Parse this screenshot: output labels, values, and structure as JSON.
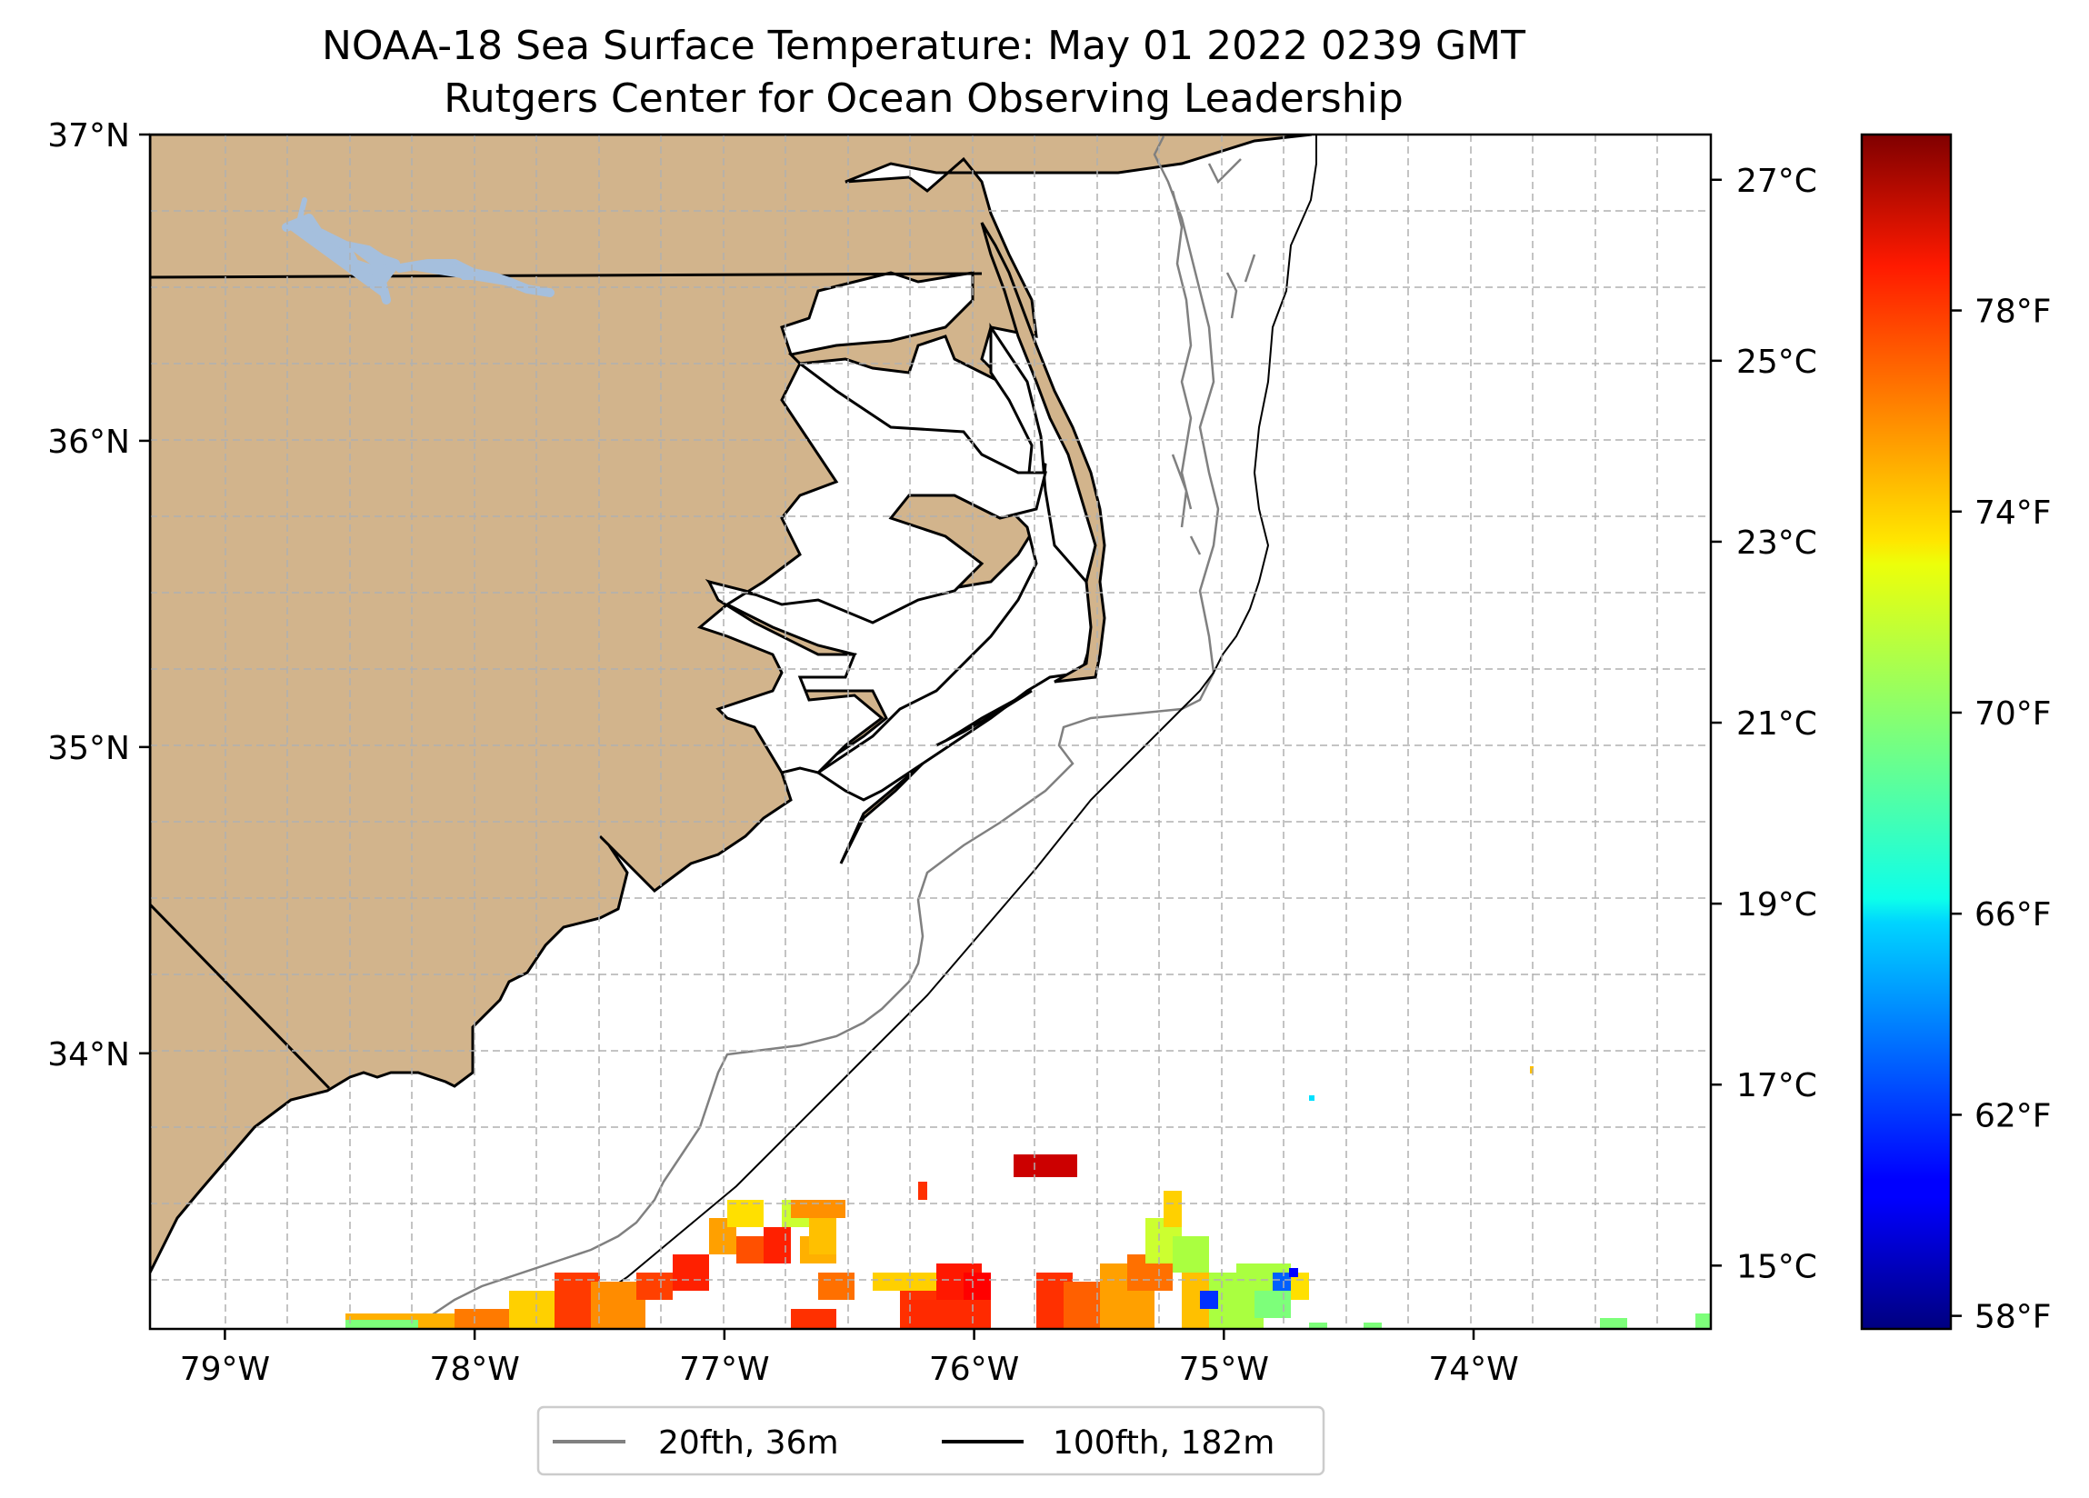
{
  "title": {
    "line1": "NOAA-18 Sea Surface Temperature: May 01 2022 0239 GMT",
    "line2": "Rutgers Center for Ocean Observing Leadership"
  },
  "map": {
    "lon_range": [
      -79.3,
      -73.05
    ],
    "lat_range": [
      33.1,
      37.0
    ],
    "lon_ticks": [
      {
        "value": -79,
        "label": "79°W"
      },
      {
        "value": -78,
        "label": "78°W"
      },
      {
        "value": -77,
        "label": "77°W"
      },
      {
        "value": -76,
        "label": "76°W"
      },
      {
        "value": -75,
        "label": "75°W"
      },
      {
        "value": -74,
        "label": "74°W"
      }
    ],
    "lat_ticks": [
      {
        "value": 37,
        "label": "37°N"
      },
      {
        "value": 36,
        "label": "36°N"
      },
      {
        "value": 35,
        "label": "35°N"
      },
      {
        "value": 34,
        "label": "34°N"
      }
    ],
    "gridlines": true,
    "colors": {
      "land": "#d2b48c",
      "lake": "#a5bfdd",
      "coastline": "#000000",
      "isobath_20": "#808080",
      "isobath_100": "#000000"
    }
  },
  "legend": {
    "placement": "below map",
    "entries": [
      {
        "label": "20fth, 36m",
        "color": "#808080"
      },
      {
        "label": "100fth, 182m",
        "color": "#000000"
      }
    ]
  },
  "colorbar": {
    "colormap": "jet",
    "range_c": [
      14.3,
      27.5
    ],
    "celsius_ticks": [
      {
        "value": 27,
        "label": "27°C"
      },
      {
        "value": 25,
        "label": "25°C"
      },
      {
        "value": 23,
        "label": "23°C"
      },
      {
        "value": 21,
        "label": "21°C"
      },
      {
        "value": 19,
        "label": "19°C"
      },
      {
        "value": 17,
        "label": "17°C"
      },
      {
        "value": 15,
        "label": "15°C"
      }
    ],
    "fahrenheit_ticks": [
      {
        "value": 78,
        "label": "78°F"
      },
      {
        "value": 74,
        "label": "74°F"
      },
      {
        "value": 70,
        "label": "70°F"
      },
      {
        "value": 66,
        "label": "66°F"
      },
      {
        "value": 62,
        "label": "62°F"
      },
      {
        "value": 58,
        "label": "58°F"
      }
    ]
  }
}
